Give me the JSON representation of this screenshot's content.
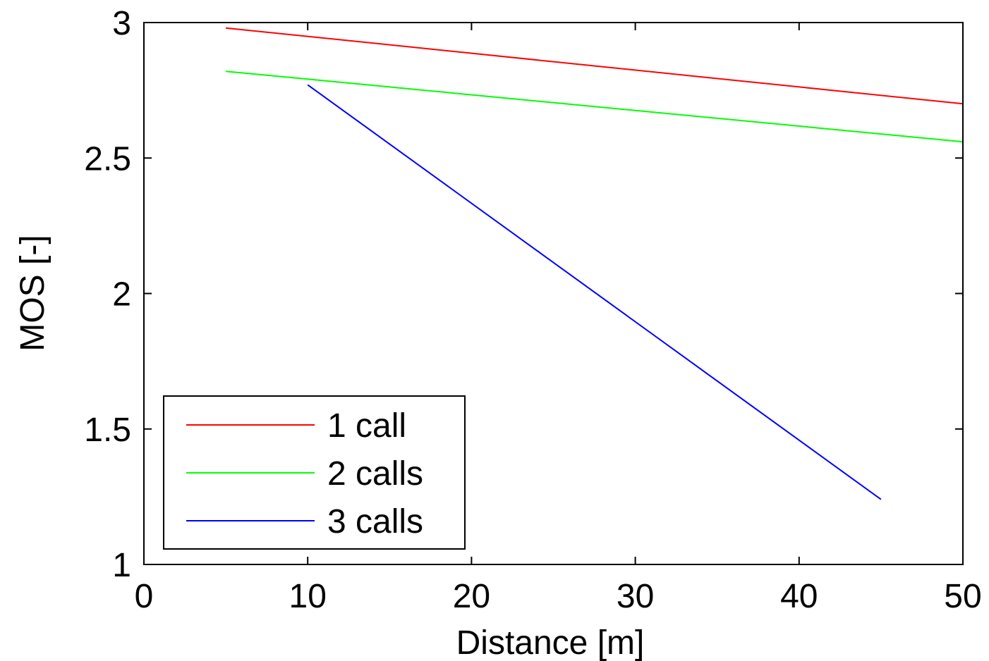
{
  "chart_data": {
    "type": "line",
    "title": "",
    "xlabel": "Distance [m]",
    "ylabel": "MOS [-]",
    "xlim": [
      0,
      50
    ],
    "ylim": [
      1,
      3
    ],
    "xticks": [
      0,
      10,
      20,
      30,
      40,
      50
    ],
    "yticks": [
      1,
      1.5,
      2,
      2.5,
      3
    ],
    "xtick_labels": [
      "0",
      "10",
      "20",
      "30",
      "40",
      "50"
    ],
    "ytick_labels": [
      "1",
      "1.5",
      "2",
      "2.5",
      "3"
    ],
    "grid": false,
    "legend_position": "bottom-left",
    "series": [
      {
        "name": "1 call",
        "color": "#ff0000",
        "x": [
          5,
          50
        ],
        "y": [
          2.98,
          2.7
        ]
      },
      {
        "name": "2 calls",
        "color": "#00ff00",
        "x": [
          5,
          50
        ],
        "y": [
          2.82,
          2.56
        ]
      },
      {
        "name": "3 calls",
        "color": "#0000ff",
        "x": [
          10,
          45
        ],
        "y": [
          2.77,
          1.24
        ]
      }
    ]
  }
}
